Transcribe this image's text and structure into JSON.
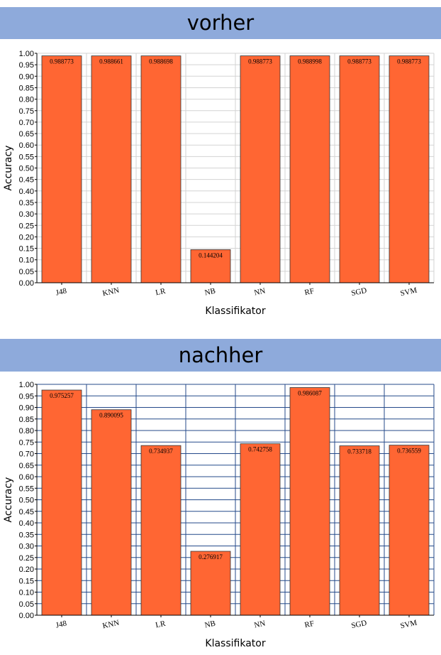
{
  "panels": [
    {
      "banner": "vorher"
    },
    {
      "banner": "nachher"
    }
  ],
  "chart_data": [
    {
      "type": "bar",
      "categories": [
        "J48",
        "KNN",
        "LR",
        "NB",
        "NN",
        "RF",
        "SGD",
        "SVM"
      ],
      "values": [
        0.988773,
        0.988661,
        0.988698,
        0.144204,
        0.988773,
        0.988998,
        0.988773,
        0.988773
      ],
      "data_labels": [
        "0.988773",
        "0.988661",
        "0.988698",
        "0.144204",
        "0.988773",
        "0.988998",
        "0.988773",
        "0.988773"
      ],
      "xlabel": "Klassifikator",
      "ylabel": "Accuracy",
      "ylim": [
        0,
        1
      ],
      "yticks": [
        "0.00",
        "0.05",
        "0.10",
        "0.15",
        "0.20",
        "0.25",
        "0.30",
        "0.35",
        "0.40",
        "0.45",
        "0.50",
        "0.55",
        "0.60",
        "0.65",
        "0.70",
        "0.75",
        "0.80",
        "0.85",
        "0.90",
        "0.95",
        "1.00"
      ],
      "grid": true,
      "colors": {
        "bar": "#ff6633",
        "bar_border": "#333333",
        "grid": "#d3d3d3"
      }
    },
    {
      "type": "bar",
      "categories": [
        "J48",
        "KNN",
        "LR",
        "NB",
        "NN",
        "RF",
        "SGD",
        "SVM"
      ],
      "values": [
        0.975257,
        0.890095,
        0.734937,
        0.276917,
        0.742758,
        0.986087,
        0.733718,
        0.736559
      ],
      "data_labels": [
        "0.975257",
        "0.890095",
        "0.734937",
        "0.276917",
        "0.742758",
        "0.986087",
        "0.733718",
        "0.736559"
      ],
      "xlabel": "Klassifikator",
      "ylabel": "Accuracy",
      "ylim": [
        0,
        1
      ],
      "yticks": [
        "0.00",
        "0.05",
        "0.10",
        "0.15",
        "0.20",
        "0.25",
        "0.30",
        "0.35",
        "0.40",
        "0.45",
        "0.50",
        "0.55",
        "0.60",
        "0.65",
        "0.70",
        "0.75",
        "0.80",
        "0.85",
        "0.90",
        "0.95",
        "1.00"
      ],
      "grid": true,
      "colors": {
        "bar": "#ff6633",
        "bar_border": "#333333",
        "grid": "#244a8a"
      }
    }
  ]
}
